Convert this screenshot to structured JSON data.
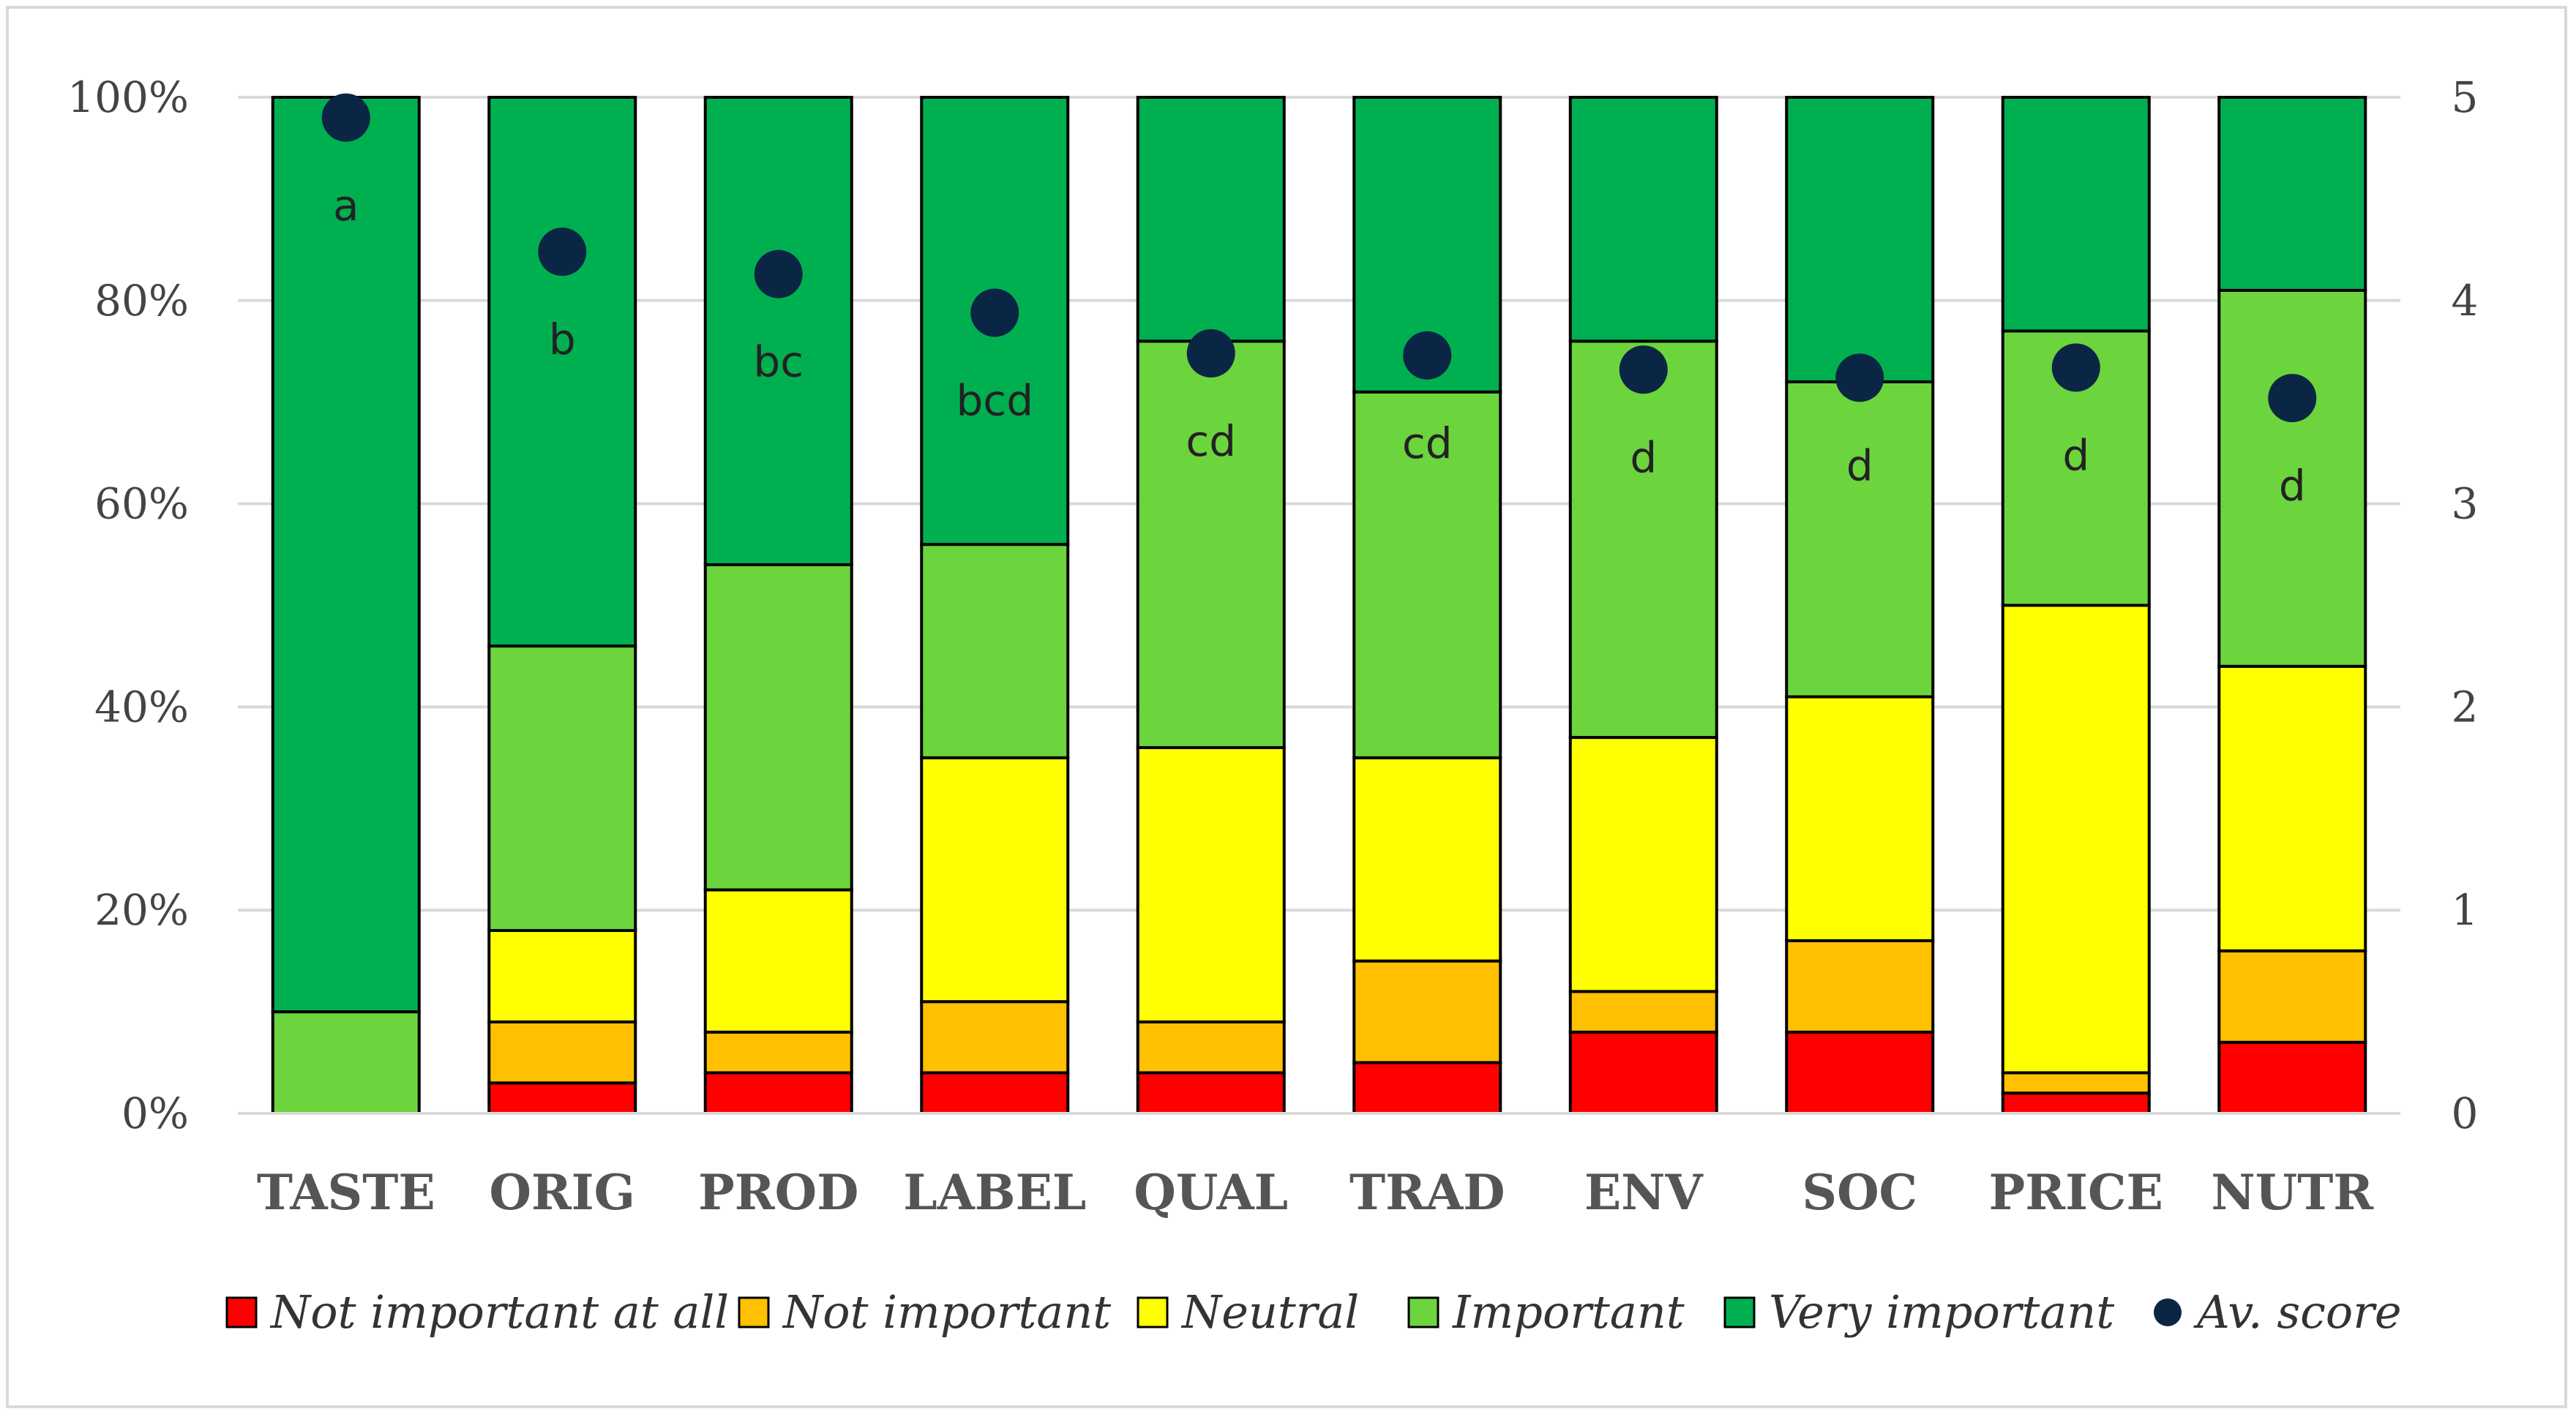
{
  "chart_data": {
    "type": "bar",
    "stacked": true,
    "title": "",
    "xlabel": "",
    "ylabel": "",
    "categories": [
      "TASTE",
      "ORIG",
      "PROD",
      "LABEL",
      "QUAL",
      "TRAD",
      "ENV",
      "SOC",
      "PRICE",
      "NUTR"
    ],
    "series": [
      {
        "name": "Not important at all",
        "color": "#ff0000",
        "values": [
          0,
          3,
          4,
          4,
          4,
          5,
          8,
          8,
          2,
          7
        ]
      },
      {
        "name": "Not important",
        "color": "#ffc000",
        "values": [
          0,
          6,
          4,
          7,
          5,
          10,
          4,
          9,
          2,
          9
        ]
      },
      {
        "name": "Neutral",
        "color": "#ffff00",
        "values": [
          0,
          9,
          14,
          24,
          27,
          20,
          25,
          24,
          46,
          28
        ]
      },
      {
        "name": "Important",
        "color": "#6cd43c",
        "values": [
          10,
          28,
          32,
          21,
          40,
          36,
          39,
          31,
          27,
          37
        ]
      },
      {
        "name": "Very important",
        "color": "#00b050",
        "values": [
          90,
          54,
          46,
          44,
          24,
          29,
          24,
          28,
          23,
          19
        ]
      }
    ],
    "av_score": {
      "name": "Av. score",
      "color": "#0b2545",
      "values": [
        4.9,
        4.24,
        4.13,
        3.94,
        3.74,
        3.73,
        3.66,
        3.62,
        3.67,
        3.52
      ]
    },
    "significance_labels": [
      "a",
      "b",
      "bc",
      "bcd",
      "cd",
      "cd",
      "d",
      "d",
      "d",
      "d"
    ],
    "y_left": {
      "min": 0,
      "max": 100,
      "ticks": [
        "0%",
        "20%",
        "40%",
        "60%",
        "80%",
        "100%"
      ]
    },
    "y_right": {
      "min": 0,
      "max": 5,
      "ticks": [
        "0",
        "1",
        "2",
        "3",
        "4",
        "5"
      ]
    },
    "grid": true,
    "legend_position": "bottom"
  }
}
